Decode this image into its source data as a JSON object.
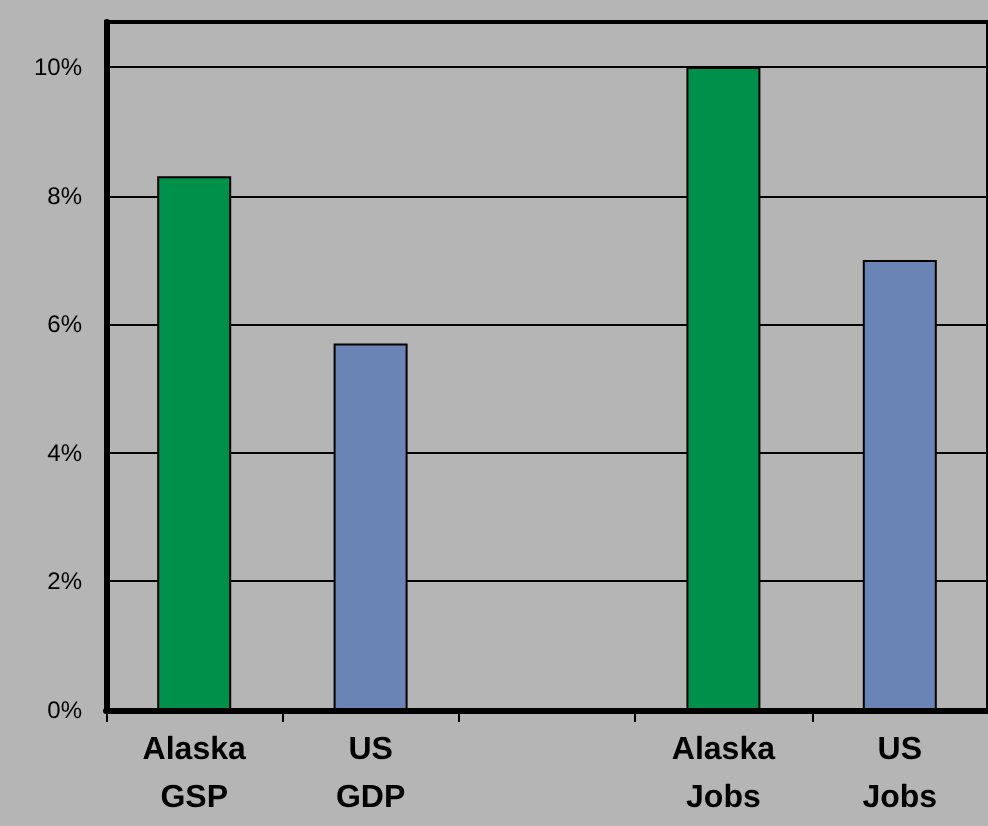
{
  "chart_data": {
    "type": "bar",
    "categories": [
      "Alaska GSP",
      "US GDP",
      null,
      "Alaska Jobs",
      "US Jobs"
    ],
    "values": [
      8.3,
      5.7,
      null,
      10.0,
      7.0
    ],
    "colors": [
      "#00904a",
      "#6b84b6",
      null,
      "#00904a",
      "#6b84b6"
    ],
    "ylim": [
      0,
      10.7
    ],
    "yticks": [
      {
        "value": 0,
        "label": "0%"
      },
      {
        "value": 2,
        "label": "2%"
      },
      {
        "value": 4,
        "label": "4%"
      },
      {
        "value": 6,
        "label": "6%"
      },
      {
        "value": 8,
        "label": "8%"
      },
      {
        "value": 10,
        "label": "10%"
      }
    ],
    "grid": "y"
  }
}
